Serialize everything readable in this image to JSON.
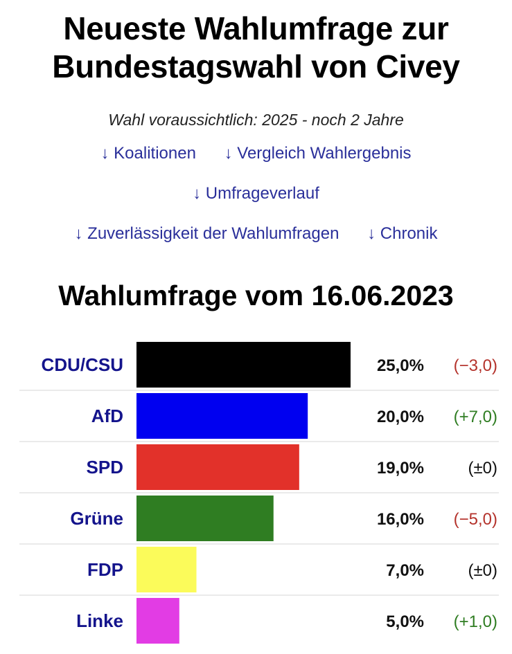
{
  "title_line1": "Neueste Wahlumfrage zur",
  "title_line2": "Bundestagswahl von Civey",
  "subtitle": "Wahl voraussichtlich: 2025 - noch 2 Jahre",
  "nav": {
    "koalitionen": "↓ Koalitionen",
    "vergleich": "↓ Vergleich Wahlergebnis",
    "umfrageverlauf": "↓ Umfrageverlauf",
    "zuverlaessigkeit": "↓ Zuverlässigkeit der Wahlumfragen",
    "chronik": "↓ Chronik"
  },
  "chart_heading": "Wahlumfrage vom 16.06.2023",
  "chart_data": {
    "type": "bar",
    "orientation": "horizontal",
    "categories": [
      "CDU/CSU",
      "AfD",
      "SPD",
      "Grüne",
      "FDP",
      "Linke"
    ],
    "values": [
      25.0,
      20.0,
      19.0,
      16.0,
      7.0,
      5.0
    ],
    "value_labels": [
      "25,0%",
      "20,0%",
      "19,0%",
      "16,0%",
      "7,0%",
      "5,0%"
    ],
    "changes": [
      "(−3,0)",
      "(+7,0)",
      "(±0)",
      "(−5,0)",
      "(±0)",
      "(+1,0)"
    ],
    "change_direction": [
      "down",
      "up",
      "none",
      "down",
      "none",
      "up"
    ],
    "colors": [
      "#000000",
      "#0000f0",
      "#e2312a",
      "#2f7d22",
      "#fbfb5a",
      "#e23ce4"
    ],
    "change_colors": {
      "down": "#b4332c",
      "up": "#2f7d22",
      "none": "#111111"
    },
    "xlim": [
      0,
      25
    ]
  }
}
